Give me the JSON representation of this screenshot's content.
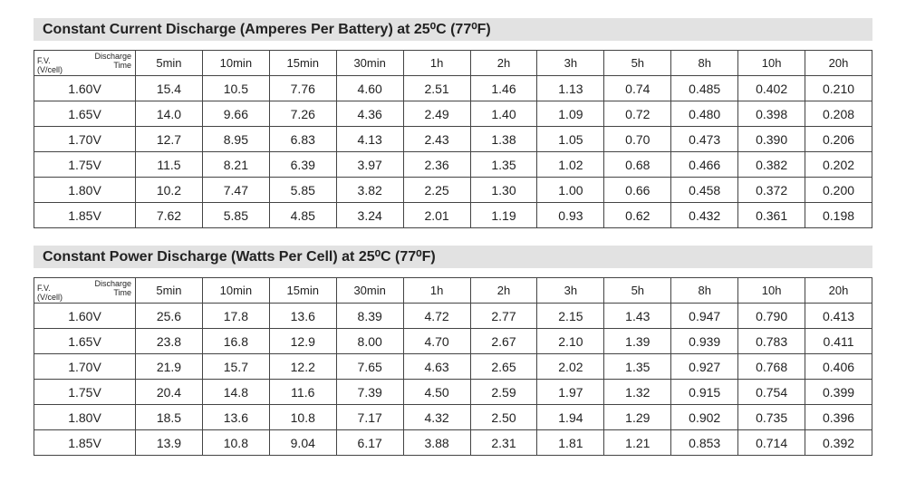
{
  "tables": [
    {
      "title": "Constant Current Discharge (Amperes Per Battery) at 25⁰C (77⁰F)",
      "corner_top": "Discharge Time",
      "corner_bottom": "F.V. (V/cell)",
      "columns": [
        "5min",
        "10min",
        "15min",
        "30min",
        "1h",
        "2h",
        "3h",
        "5h",
        "8h",
        "10h",
        "20h"
      ],
      "rows": [
        [
          "1.60V",
          "15.4",
          "10.5",
          "7.76",
          "4.60",
          "2.51",
          "1.46",
          "1.13",
          "0.74",
          "0.485",
          "0.402",
          "0.210"
        ],
        [
          "1.65V",
          "14.0",
          "9.66",
          "7.26",
          "4.36",
          "2.49",
          "1.40",
          "1.09",
          "0.72",
          "0.480",
          "0.398",
          "0.208"
        ],
        [
          "1.70V",
          "12.7",
          "8.95",
          "6.83",
          "4.13",
          "2.43",
          "1.38",
          "1.05",
          "0.70",
          "0.473",
          "0.390",
          "0.206"
        ],
        [
          "1.75V",
          "11.5",
          "8.21",
          "6.39",
          "3.97",
          "2.36",
          "1.35",
          "1.02",
          "0.68",
          "0.466",
          "0.382",
          "0.202"
        ],
        [
          "1.80V",
          "10.2",
          "7.47",
          "5.85",
          "3.82",
          "2.25",
          "1.30",
          "1.00",
          "0.66",
          "0.458",
          "0.372",
          "0.200"
        ],
        [
          "1.85V",
          "7.62",
          "5.85",
          "4.85",
          "3.24",
          "2.01",
          "1.19",
          "0.93",
          "0.62",
          "0.432",
          "0.361",
          "0.198"
        ]
      ]
    },
    {
      "title": "Constant Power Discharge (Watts Per Cell) at 25⁰C (77⁰F)",
      "corner_top": "Discharge Time",
      "corner_bottom": "F.V. (V/cell)",
      "columns": [
        "5min",
        "10min",
        "15min",
        "30min",
        "1h",
        "2h",
        "3h",
        "5h",
        "8h",
        "10h",
        "20h"
      ],
      "rows": [
        [
          "1.60V",
          "25.6",
          "17.8",
          "13.6",
          "8.39",
          "4.72",
          "2.77",
          "2.15",
          "1.43",
          "0.947",
          "0.790",
          "0.413"
        ],
        [
          "1.65V",
          "23.8",
          "16.8",
          "12.9",
          "8.00",
          "4.70",
          "2.67",
          "2.10",
          "1.39",
          "0.939",
          "0.783",
          "0.411"
        ],
        [
          "1.70V",
          "21.9",
          "15.7",
          "12.2",
          "7.65",
          "4.63",
          "2.65",
          "2.02",
          "1.35",
          "0.927",
          "0.768",
          "0.406"
        ],
        [
          "1.75V",
          "20.4",
          "14.8",
          "11.6",
          "7.39",
          "4.50",
          "2.59",
          "1.97",
          "1.32",
          "0.915",
          "0.754",
          "0.399"
        ],
        [
          "1.80V",
          "18.5",
          "13.6",
          "10.8",
          "7.17",
          "4.32",
          "2.50",
          "1.94",
          "1.29",
          "0.902",
          "0.735",
          "0.396"
        ],
        [
          "1.85V",
          "13.9",
          "10.8",
          "9.04",
          "6.17",
          "3.88",
          "2.31",
          "1.81",
          "1.21",
          "0.853",
          "0.714",
          "0.392"
        ]
      ]
    }
  ]
}
